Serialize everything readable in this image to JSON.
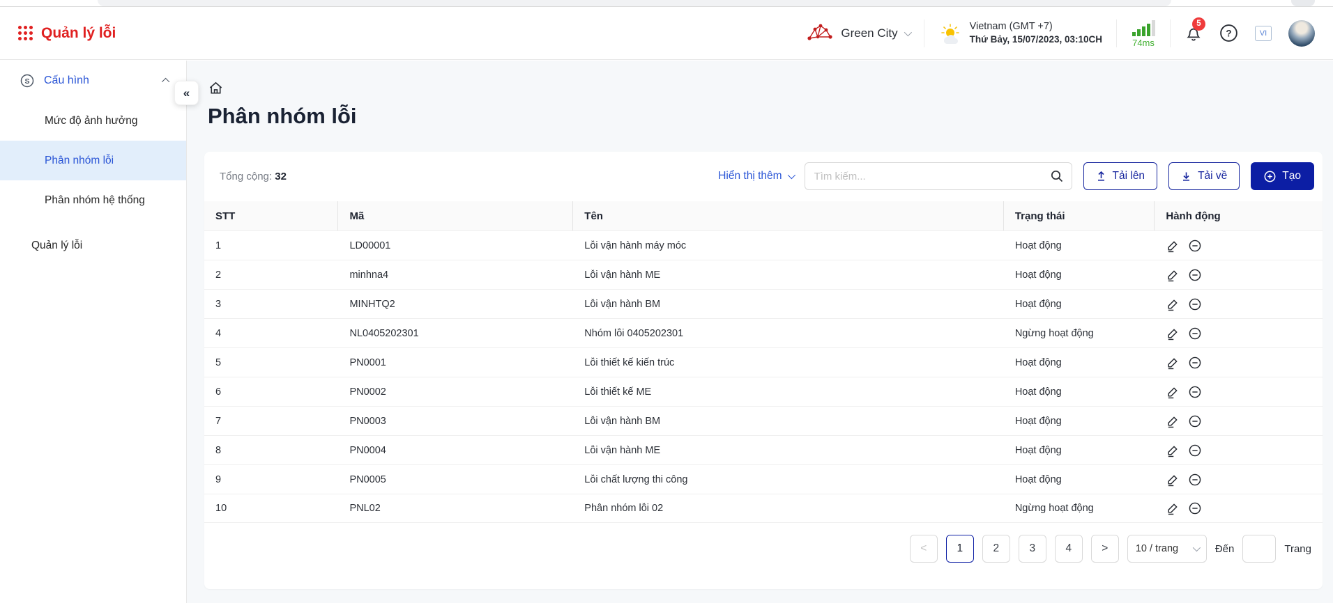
{
  "app": {
    "title": "Quản lý lỗi"
  },
  "colors": {
    "brand_red": "#e02020",
    "navy": "#0c1ea4",
    "link_blue": "#2a55d6",
    "latency_green": "#3faf2e",
    "badge_red": "#ef3b3b",
    "active_item_bg": "#e2eefb"
  },
  "header": {
    "org_name": "Green City",
    "region": "Vietnam (GMT +7)",
    "datetime": "Thứ Bảy, 15/07/2023, 03:10CH",
    "latency": "74ms",
    "notification_count": "5",
    "language_code": "VI"
  },
  "sidebar": {
    "group_label": "Cấu hình",
    "sub_items": [
      {
        "label": "Mức độ ảnh hưởng",
        "active": false
      },
      {
        "label": "Phân nhóm lỗi",
        "active": true
      },
      {
        "label": "Phân nhóm hệ thống",
        "active": false
      }
    ],
    "root_item": "Quản lý lỗi"
  },
  "main": {
    "page_title": "Phân nhóm lỗi",
    "toolbar": {
      "total_label": "Tổng cộng:",
      "total_value": "32",
      "show_more_label": "Hiển thị thêm",
      "search_placeholder": "Tìm kiếm...",
      "upload_label": "Tải lên",
      "download_label": "Tải về",
      "create_label": "Tạo"
    },
    "table": {
      "columns": [
        "STT",
        "Mã",
        "Tên",
        "Trạng thái",
        "Hành động"
      ],
      "rows": [
        {
          "stt": "1",
          "code": "LD00001",
          "name": "Lỗi vận hành máy móc",
          "status": "Hoạt động"
        },
        {
          "stt": "2",
          "code": "minhna4",
          "name": "Lỗi vận hành ME",
          "status": "Hoạt động"
        },
        {
          "stt": "3",
          "code": "MINHTQ2",
          "name": "Lỗi vận hành BM",
          "status": "Hoạt động"
        },
        {
          "stt": "4",
          "code": "NL0405202301",
          "name": "Nhóm lỗi 0405202301",
          "status": "Ngừng hoạt động"
        },
        {
          "stt": "5",
          "code": "PN0001",
          "name": "Lỗi thiết kế kiến trúc",
          "status": "Hoạt động"
        },
        {
          "stt": "6",
          "code": "PN0002",
          "name": "Lỗi thiết kế ME",
          "status": "Hoạt động"
        },
        {
          "stt": "7",
          "code": "PN0003",
          "name": "Lỗi vận hành BM",
          "status": "Hoạt động"
        },
        {
          "stt": "8",
          "code": "PN0004",
          "name": "Lỗi vận hành ME",
          "status": "Hoạt động"
        },
        {
          "stt": "9",
          "code": "PN0005",
          "name": "Lỗi chất lượng thi công",
          "status": "Hoạt động"
        },
        {
          "stt": "10",
          "code": "PNL02",
          "name": "Phân nhóm lỗi 02",
          "status": "Ngừng hoạt động"
        }
      ]
    },
    "pagination": {
      "pages": [
        "1",
        "2",
        "3",
        "4"
      ],
      "active_page": "1",
      "page_size_label": "10 / trang",
      "goto_label": "Đến",
      "goto_suffix": "Trang"
    }
  }
}
